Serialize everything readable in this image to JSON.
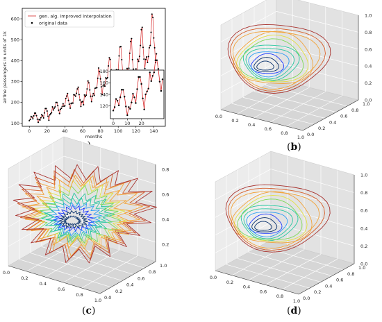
{
  "panel_labels": {
    "a": "a",
    "b": "b",
    "c": "c",
    "d": "d"
  },
  "colors": {
    "line": "#d62728",
    "point": "#000000",
    "pane_left": "#ececec",
    "pane_right": "#e2e2e2",
    "pane_floor": "#d6d6d6",
    "grid": "#ffffff",
    "spiral": [
      "#08306b",
      "#1f3cff",
      "#2a9df4",
      "#28c7a0",
      "#7ed957",
      "#e3e043",
      "#f2a33a",
      "#d65f2a",
      "#a8322e"
    ]
  },
  "chart_data": [
    {
      "type": "line",
      "panel": "a",
      "xlabel": "months",
      "ylabel": "airline passengers in units of 1k",
      "xlim": [
        -8,
        153
      ],
      "ylim": [
        85,
        650
      ],
      "xticks": [
        0,
        20,
        40,
        60,
        80,
        100,
        120,
        140
      ],
      "yticks": [
        100,
        200,
        300,
        400,
        500,
        600
      ],
      "legend": {
        "position": "top-left",
        "entries": [
          "gen. alg. improved interpolation",
          "original data"
        ]
      },
      "series": [
        {
          "name": "original data",
          "style": "points",
          "values": [
            112,
            118,
            132,
            129,
            121,
            135,
            148,
            148,
            136,
            119,
            104,
            118,
            115,
            126,
            141,
            135,
            125,
            149,
            170,
            170,
            158,
            133,
            114,
            140,
            145,
            150,
            178,
            163,
            172,
            178,
            199,
            199,
            184,
            162,
            146,
            166,
            171,
            180,
            193,
            181,
            183,
            218,
            230,
            242,
            209,
            191,
            172,
            194,
            196,
            196,
            236,
            235,
            229,
            243,
            264,
            272,
            237,
            211,
            180,
            201,
            204,
            188,
            235,
            227,
            234,
            264,
            302,
            293,
            259,
            229,
            203,
            229,
            242,
            233,
            267,
            269,
            270,
            315,
            364,
            347,
            312,
            274,
            237,
            278,
            284,
            277,
            317,
            313,
            318,
            374,
            413,
            405,
            355,
            306,
            271,
            306,
            315,
            301,
            356,
            348,
            355,
            422,
            465,
            467,
            404,
            347,
            305,
            336,
            340,
            318,
            362,
            348,
            363,
            435,
            491,
            505,
            404,
            359,
            310,
            337,
            360,
            342,
            406,
            396,
            420,
            472,
            548,
            559,
            463,
            407,
            362,
            405,
            417,
            391,
            419,
            461,
            472,
            535,
            622,
            606,
            508,
            461,
            390,
            432
          ]
        },
        {
          "name": "gen. alg. improved interpolation",
          "style": "line",
          "same_as": "original data"
        }
      ],
      "inset": {
        "xlim": [
          -2,
          36
        ],
        "ylim": [
          98,
          182
        ],
        "xticks": [
          0,
          10,
          20
        ],
        "yticks": [
          120,
          140,
          160,
          180
        ],
        "range_months": [
          0,
          35
        ]
      }
    },
    {
      "type": "line3d",
      "panel": "b",
      "xticks": [
        "0.0",
        "0.2",
        "0.4",
        "0.6",
        "0.8",
        "1.0"
      ],
      "yticks": [
        "0.0",
        "0.2",
        "0.4",
        "0.6",
        "0.8",
        "1.0"
      ],
      "zticks": [
        "0.0",
        "0.2",
        "0.4",
        "0.6",
        "0.8",
        "1.0"
      ]
    },
    {
      "type": "line3d",
      "panel": "c",
      "xticks": [
        "0.0",
        "0.2",
        "0.4",
        "0.6",
        "0.8",
        "1.0"
      ],
      "yticks": [
        "0.0",
        "0.2",
        "0.4",
        "0.6",
        "0.8",
        "1.0"
      ],
      "zticks": [
        "0.2",
        "0.4",
        "0.6",
        "0.8"
      ]
    },
    {
      "type": "line3d",
      "panel": "d",
      "xticks": [
        "0.0",
        "0.2",
        "0.4",
        "0.6",
        "0.8",
        "1.0"
      ],
      "yticks": [
        "0.0",
        "0.2",
        "0.4",
        "0.6",
        "0.8",
        "1.0"
      ],
      "zticks": [
        "0.0",
        "0.2",
        "0.4",
        "0.6",
        "0.8",
        "1.0"
      ]
    }
  ]
}
